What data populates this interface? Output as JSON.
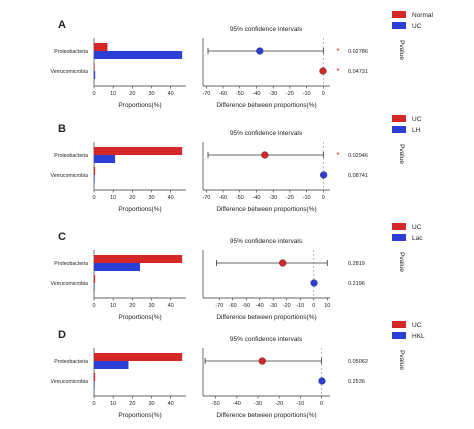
{
  "chart_data": [
    {
      "type": "bar",
      "panel_label": "A",
      "ci_title": "95% confidence intervals",
      "categories": [
        "Proteobacteria",
        "Verrucomicrobia"
      ],
      "series": [
        {
          "name": "Normal",
          "color": "#d62728",
          "values": [
            7,
            0.2
          ]
        },
        {
          "name": "UC",
          "color": "#2b3fd6",
          "values": [
            46,
            0.6
          ]
        }
      ],
      "bar_xlabel": "Proportions(%)",
      "bar_xticks": [
        0,
        10,
        20,
        30,
        40
      ],
      "bar_xlim": [
        0,
        48
      ],
      "diff_xlabel": "Difference between proportions(%)",
      "diff_xticks": [
        -70,
        -60,
        -50,
        -40,
        -30,
        -20,
        -10,
        0
      ],
      "diff_xlim": [
        -72,
        4
      ],
      "diff": [
        {
          "estimate": -38,
          "lower": -69,
          "upper": 0,
          "color": "#2b3fd6"
        },
        {
          "estimate": -0.2,
          "lower": -0.2,
          "upper": -0.2,
          "color": "#d62728"
        }
      ],
      "significant": [
        "*",
        "*"
      ],
      "pvalues": [
        "0.02786",
        "0.04731"
      ],
      "pvalue_label": "Pvalue"
    },
    {
      "type": "bar",
      "panel_label": "B",
      "ci_title": "95% confidence intervals",
      "categories": [
        "Proteobacteria",
        "Verrucomicrobia"
      ],
      "series": [
        {
          "name": "UC",
          "color": "#d62728",
          "values": [
            46,
            0.6
          ]
        },
        {
          "name": "LH",
          "color": "#2b3fd6",
          "values": [
            11,
            0.2
          ]
        }
      ],
      "bar_xlabel": "Proportions(%)",
      "bar_xticks": [
        0,
        10,
        20,
        30,
        40
      ],
      "bar_xlim": [
        0,
        48
      ],
      "diff_xlabel": "Difference between proportions(%)",
      "diff_xticks": [
        -70,
        -60,
        -50,
        -40,
        -30,
        -20,
        -10,
        0
      ],
      "diff_xlim": [
        -72,
        4
      ],
      "diff": [
        {
          "estimate": -35,
          "lower": -69,
          "upper": 0,
          "color": "#d62728"
        },
        {
          "estimate": 0.2,
          "lower": 0.2,
          "upper": 0.2,
          "color": "#2b3fd6"
        }
      ],
      "significant": [
        "*",
        ""
      ],
      "pvalues": [
        "0.02946",
        "0.08741"
      ],
      "pvalue_label": "Pvalue"
    },
    {
      "type": "bar",
      "panel_label": "C",
      "ci_title": "95% confidence intervals",
      "categories": [
        "Proteobacteria",
        "Verrucomicrobia"
      ],
      "series": [
        {
          "name": "UC",
          "color": "#d62728",
          "values": [
            46,
            0.6
          ]
        },
        {
          "name": "Lac",
          "color": "#2b3fd6",
          "values": [
            24,
            0.3
          ]
        }
      ],
      "bar_xlabel": "Proportions(%)",
      "bar_xticks": [
        0,
        10,
        20,
        30,
        40
      ],
      "bar_xlim": [
        0,
        48
      ],
      "diff_xlabel": "Difference between proportions(%)",
      "diff_xticks": [
        -70,
        -60,
        -50,
        -40,
        -30,
        -20,
        -10,
        0,
        10
      ],
      "diff_xlim": [
        -82,
        12
      ],
      "diff": [
        {
          "estimate": -23,
          "lower": -72,
          "upper": 10,
          "color": "#d62728"
        },
        {
          "estimate": 0.2,
          "lower": 0.2,
          "upper": 0.2,
          "color": "#2b3fd6"
        }
      ],
      "significant": [
        "",
        ""
      ],
      "pvalues": [
        "0.2819",
        "0.2196"
      ],
      "pvalue_label": "Pvalue"
    },
    {
      "type": "bar",
      "panel_label": "D",
      "ci_title": "95% confidence intervals",
      "categories": [
        "Proteobacteria",
        "Verrucomicrobia"
      ],
      "series": [
        {
          "name": "UC",
          "color": "#d62728",
          "values": [
            46,
            0.6
          ]
        },
        {
          "name": "HKL",
          "color": "#2b3fd6",
          "values": [
            18,
            0.3
          ]
        }
      ],
      "bar_xlabel": "Proportions(%)",
      "bar_xticks": [
        0,
        10,
        20,
        30,
        40
      ],
      "bar_xlim": [
        0,
        48
      ],
      "diff_xlabel": "Difference between proportions(%)",
      "diff_xticks": [
        -50,
        -40,
        -30,
        -20,
        -10,
        0
      ],
      "diff_xlim": [
        -56,
        4
      ],
      "diff": [
        {
          "estimate": -28,
          "lower": -55,
          "upper": 0,
          "color": "#d62728"
        },
        {
          "estimate": 0.2,
          "lower": 0.2,
          "upper": 0.2,
          "color": "#2b3fd6"
        }
      ],
      "significant": [
        "",
        ""
      ],
      "pvalues": [
        "0.05062",
        "0.2536"
      ],
      "pvalue_label": "Pvalue"
    }
  ]
}
